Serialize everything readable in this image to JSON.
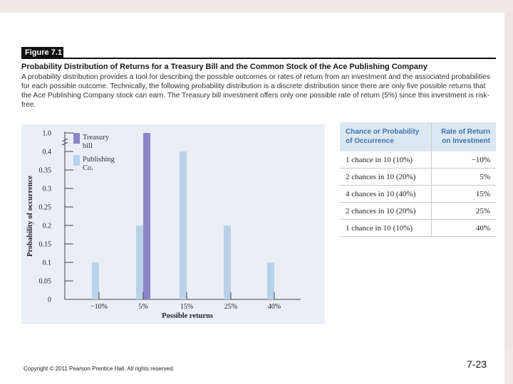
{
  "figure": {
    "label": "Figure 7.1",
    "title": "Probability Distribution of Returns for a Treasury Bill and the Common Stock of the Ace Publishing Company",
    "caption": "A probability distribution provides a tool for describing the possible outcomes or rates of return from an investment and the associated probabilities for each possible outcome. Technically, the following probability distribution is a discrete distribution since there are only five possible returns that the Ace Publishing Company stock can earn. The Treasury bill investment offers only one possible rate of return (5%) since this investment is risk-free."
  },
  "chart_data": {
    "type": "bar",
    "categories": [
      "−10%",
      "5%",
      "15%",
      "25%",
      "40%"
    ],
    "series": [
      {
        "name": "Treasury bill",
        "values": [
          0,
          1.0,
          0,
          0,
          0
        ],
        "color": "#8a86c8"
      },
      {
        "name": "Publishing Co.",
        "values": [
          0.1,
          0.2,
          0.4,
          0.2,
          0.1
        ],
        "color": "#b9d2e8"
      }
    ],
    "y_ticks": [
      "0",
      "0.05",
      "0.1",
      "0.15",
      "0.2",
      "0.25",
      "0.3",
      "0.35",
      "0.4",
      "1.0"
    ],
    "y_tick_values": [
      0,
      0.05,
      0.1,
      0.15,
      0.2,
      0.25,
      0.3,
      0.35,
      0.4,
      1.0
    ],
    "axis_break": "between 0.4 and 1.0",
    "xlabel": "Possible returns",
    "ylabel": "Probability of occurrence",
    "legend": [
      "Treasury bill",
      "Publishing Co."
    ],
    "legend_placement": "top-left",
    "grid": false
  },
  "table": {
    "headers": [
      "Chance or Probability of Occurrence",
      "Rate of Return on Investment"
    ],
    "rows": [
      {
        "chance": "1 chance in 10 (10%)",
        "rate": "−10%"
      },
      {
        "chance": "2 chances in 10 (20%)",
        "rate": "5%"
      },
      {
        "chance": "4 chances in 10 (40%)",
        "rate": "15%"
      },
      {
        "chance": "2 chances in 10 (20%)",
        "rate": "25%"
      },
      {
        "chance": "1 chance in 10 (10%)",
        "rate": "40%"
      }
    ]
  },
  "footer": {
    "copyright": "Copyright © 2011 Pearson Prentice Hall. All rights reserved.",
    "page_number": "7-23"
  }
}
